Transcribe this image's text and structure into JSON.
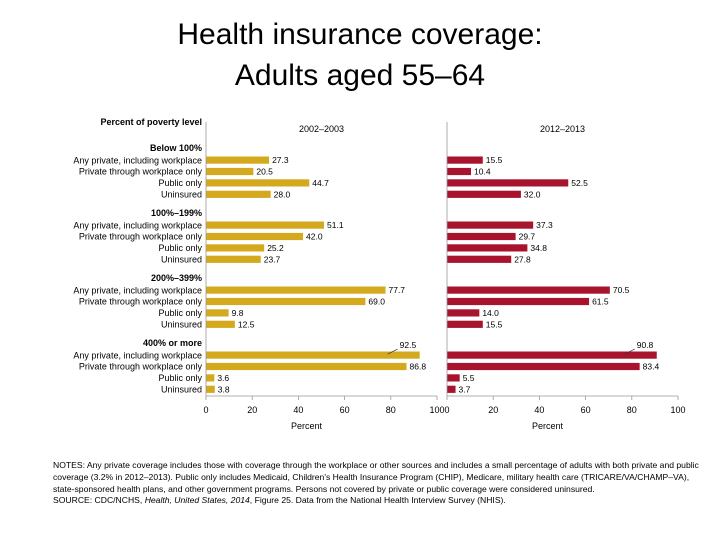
{
  "title_line1": "Health insurance coverage:",
  "title_line2": "Adults aged 55–64",
  "notes_text": "NOTES: Any private coverage includes those with coverage through the workplace or other sources and includes a small percentage of adults with both private and public coverage (3.2% in 2012–2013). Public only includes Medicaid, Children's Health Insurance Program (CHIP), Medicare, military health care (TRICARE/VA/CHAMP–VA), state-sponsored health plans, and other government programs. Persons not covered by private or public coverage were considered uninsured.",
  "source_prefix": "SOURCE: CDC/NCHS, ",
  "source_pub": "Health, United States, 2014",
  "source_suffix": ", Figure 25. Data from the National Health Interview Survey (NHIS).",
  "colors": {
    "panel_2002": "#d4a91e",
    "panel_2012": "#a8142e",
    "axis": "#999999",
    "text": "#000000"
  },
  "chart_data": {
    "type": "bar",
    "orientation": "horizontal",
    "group_header": "Percent of poverty level",
    "groups": [
      {
        "label": "Below 100%",
        "categories": [
          "Any private, including workplace",
          "Private through workplace only",
          "Public only",
          "Uninsured"
        ]
      },
      {
        "label": "100%–199%",
        "categories": [
          "Any private, including workplace",
          "Private through workplace only",
          "Public only",
          "Uninsured"
        ]
      },
      {
        "label": "200%–399%",
        "categories": [
          "Any private, including workplace",
          "Private through workplace only",
          "Public only",
          "Uninsured"
        ]
      },
      {
        "label": "400% or more",
        "categories": [
          "Any private, including workplace",
          "Private through workplace only",
          "Public only",
          "Uninsured"
        ]
      }
    ],
    "panels": [
      {
        "title": "2002–2003",
        "values": [
          [
            27.3,
            20.5,
            44.7,
            28.0
          ],
          [
            51.1,
            42.0,
            25.2,
            23.7
          ],
          [
            77.7,
            69.0,
            9.8,
            12.5
          ],
          [
            92.5,
            86.8,
            3.6,
            3.8
          ]
        ]
      },
      {
        "title": "2012–2013",
        "values": [
          [
            15.5,
            10.4,
            52.5,
            32.0
          ],
          [
            37.3,
            29.7,
            34.8,
            27.8
          ],
          [
            70.5,
            61.5,
            14.0,
            15.5
          ],
          [
            90.8,
            83.4,
            5.5,
            3.7
          ]
        ]
      }
    ],
    "xlabel": "Percent",
    "xlim": [
      0,
      100
    ],
    "xticks": [
      0,
      20,
      40,
      60,
      80,
      100
    ],
    "grid": false,
    "legend": "none"
  }
}
